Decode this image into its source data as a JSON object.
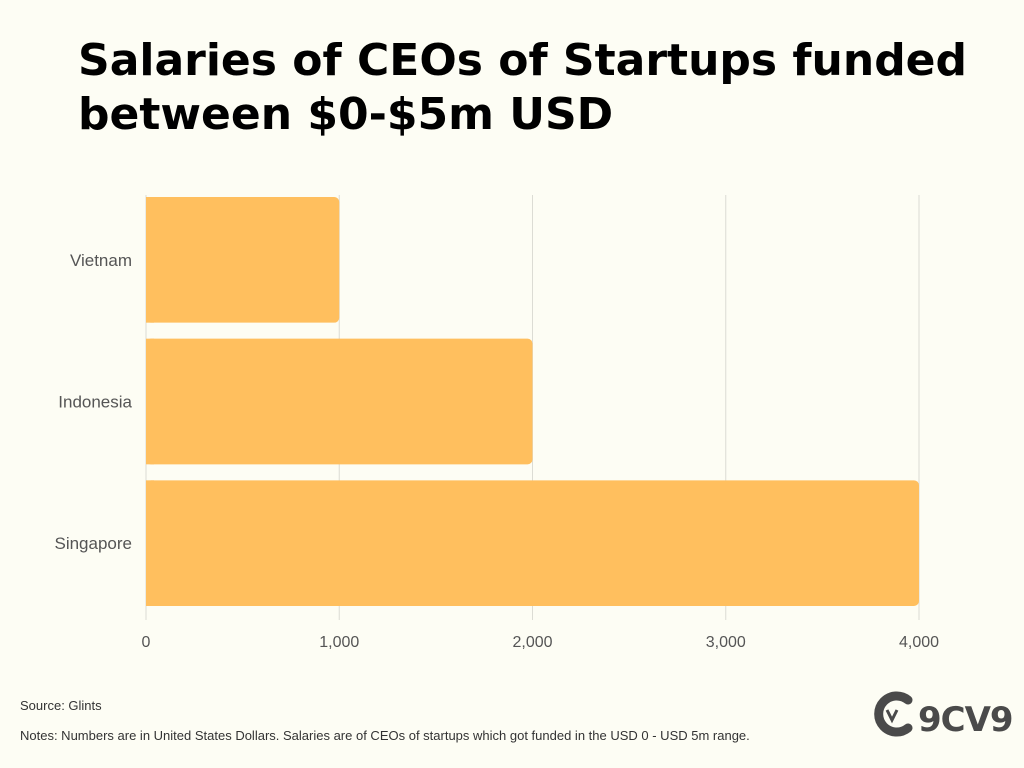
{
  "chart_data": {
    "type": "bar",
    "orientation": "horizontal",
    "title": "Salaries of CEOs of Startups funded between $0-$5m USD",
    "categories": [
      "Vietnam",
      "Indonesia",
      "Singapore"
    ],
    "values": [
      1000,
      2000,
      4000
    ],
    "xlim": [
      0,
      4000
    ],
    "xticks": [
      0,
      1000,
      2000,
      3000,
      4000
    ],
    "xtick_labels": [
      "0",
      "1,000",
      "2,000",
      "3,000",
      "4,000"
    ],
    "grid": "vertical",
    "bar_color": "#ffbf5e"
  },
  "footer": {
    "source": "Source: Glints",
    "notes": "Notes: Numbers are in United States Dollars. Salaries are of CEOs of startups which got funded in the USD 0 - USD 5m range."
  },
  "logo": {
    "text": "9CV9",
    "icon": "9cv9-logo-icon"
  }
}
